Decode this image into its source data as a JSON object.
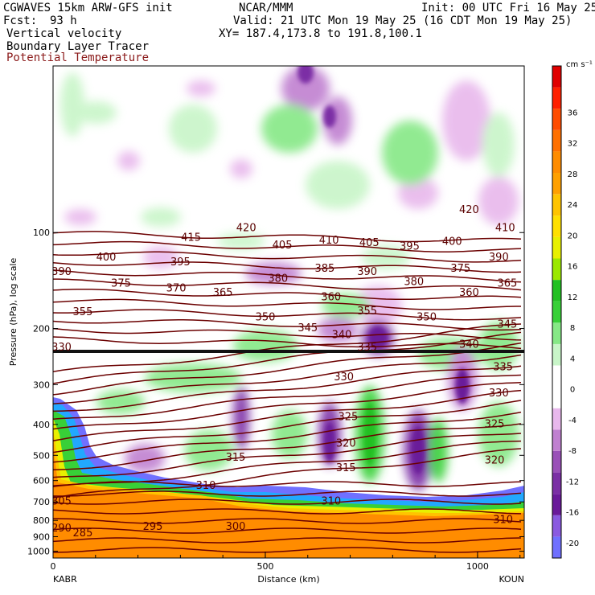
{
  "header": {
    "model": "CGWAVES 15km ARW-GFS init",
    "org": "NCAR/MMM",
    "init": "Init: 00 UTC Fri 16 May 25",
    "fcst_label": "Fcst:",
    "fcst_value": "93 h",
    "valid": "Valid: 21 UTC Mon 19 May 25 (16 CDT Mon 19 May 25)",
    "field1": "Vertical velocity",
    "field2": "Boundary Layer Tracer",
    "field3": "Potential Temperature",
    "xy": "XY= 187.4,173.8 to 191.8,100.1"
  },
  "colors": {
    "theta": "#6b0000",
    "bl_orange": "#ff8c00",
    "up_green": "#3cd83c",
    "down_purple": "#7a1fa0"
  },
  "chart_data": {
    "type": "cross-section",
    "xlabel": "Distance (km)",
    "ylabel": "Pressure (hPa), log scale",
    "x_ticks": [
      "0",
      "500",
      "1000"
    ],
    "x_tick_values": [
      0,
      500,
      1000
    ],
    "x_range": [
      0,
      1110
    ],
    "y_ticks": [
      "100",
      "200",
      "300",
      "400",
      "500",
      "600",
      "700",
      "800",
      "900",
      "1000"
    ],
    "y_tick_values": [
      100,
      200,
      300,
      400,
      500,
      600,
      700,
      800,
      900,
      1000
    ],
    "y_range": [
      1050,
      30
    ],
    "y_scale": "log",
    "left_station": "KABR",
    "right_station": "KOUN",
    "colorbar": {
      "units": "cm s⁻¹",
      "labels": [
        "36",
        "32",
        "28",
        "24",
        "20",
        "16",
        "12",
        "8",
        "4",
        "0",
        "-4",
        "-8",
        "-12",
        "-16",
        "-20"
      ],
      "label_values": [
        36,
        32,
        28,
        24,
        20,
        16,
        12,
        8,
        4,
        0,
        -4,
        -8,
        -12,
        -16,
        -20
      ],
      "range": [
        -22,
        42
      ],
      "colors": [
        "#7070ff",
        "#8a5ae0",
        "#6a1a9a",
        "#7b2fa5",
        "#9a50b8",
        "#c080d0",
        "#e8b8ec",
        "#ffffff",
        "#ffffff",
        "#c8f5c8",
        "#86e886",
        "#38d038",
        "#22c022",
        "#9be800",
        "#e8f000",
        "#ffe000",
        "#ffc400",
        "#ffa000",
        "#ff8c00",
        "#ff7000",
        "#ff4c00",
        "#ff2000",
        "#e00000"
      ]
    },
    "theta_contours": [
      {
        "label": "285",
        "x": 70,
        "p": 880
      },
      {
        "label": "290",
        "x": 20,
        "p": 850
      },
      {
        "label": "295",
        "x": 235,
        "p": 840
      },
      {
        "label": "300",
        "x": 430,
        "p": 840
      },
      {
        "label": "305",
        "x": 20,
        "p": 700
      },
      {
        "label": "310",
        "x": 360,
        "p": 625
      },
      {
        "label": "310",
        "x": 655,
        "p": 700
      },
      {
        "label": "310",
        "x": 1060,
        "p": 800
      },
      {
        "label": "315",
        "x": 430,
        "p": 510
      },
      {
        "label": "315",
        "x": 690,
        "p": 550
      },
      {
        "label": "320",
        "x": 690,
        "p": 460
      },
      {
        "label": "320",
        "x": 1040,
        "p": 520
      },
      {
        "label": "325",
        "x": 695,
        "p": 380
      },
      {
        "label": "325",
        "x": 1040,
        "p": 400
      },
      {
        "label": "330",
        "x": 685,
        "p": 285
      },
      {
        "label": "330",
        "x": 1050,
        "p": 320
      },
      {
        "label": "330",
        "x": 20,
        "p": 230
      },
      {
        "label": "335",
        "x": 740,
        "p": 230
      },
      {
        "label": "335",
        "x": 1060,
        "p": 265
      },
      {
        "label": "340",
        "x": 680,
        "p": 210
      },
      {
        "label": "340",
        "x": 980,
        "p": 225
      },
      {
        "label": "345",
        "x": 600,
        "p": 200
      },
      {
        "label": "345",
        "x": 1070,
        "p": 195
      },
      {
        "label": "350",
        "x": 500,
        "p": 185
      },
      {
        "label": "350",
        "x": 880,
        "p": 185
      },
      {
        "label": "355",
        "x": 70,
        "p": 178
      },
      {
        "label": "355",
        "x": 740,
        "p": 177
      },
      {
        "label": "360",
        "x": 655,
        "p": 160
      },
      {
        "label": "360",
        "x": 980,
        "p": 155
      },
      {
        "label": "365",
        "x": 400,
        "p": 155
      },
      {
        "label": "365",
        "x": 1070,
        "p": 145
      },
      {
        "label": "370",
        "x": 290,
        "p": 150
      },
      {
        "label": "375",
        "x": 160,
        "p": 145
      },
      {
        "label": "375",
        "x": 960,
        "p": 130
      },
      {
        "label": "380",
        "x": 530,
        "p": 140
      },
      {
        "label": "380",
        "x": 850,
        "p": 143
      },
      {
        "label": "385",
        "x": 640,
        "p": 130
      },
      {
        "label": "390",
        "x": 20,
        "p": 133
      },
      {
        "label": "390",
        "x": 740,
        "p": 133
      },
      {
        "label": "390",
        "x": 1050,
        "p": 120
      },
      {
        "label": "395",
        "x": 300,
        "p": 124
      },
      {
        "label": "395",
        "x": 840,
        "p": 111
      },
      {
        "label": "400",
        "x": 125,
        "p": 120
      },
      {
        "label": "400",
        "x": 940,
        "p": 107
      },
      {
        "label": "405",
        "x": 540,
        "p": 110
      },
      {
        "label": "405",
        "x": 745,
        "p": 108
      },
      {
        "label": "410",
        "x": 650,
        "p": 106
      },
      {
        "label": "410",
        "x": 1065,
        "p": 97
      },
      {
        "label": "415",
        "x": 325,
        "p": 104
      },
      {
        "label": "420",
        "x": 455,
        "p": 97
      },
      {
        "label": "420",
        "x": 980,
        "p": 85
      }
    ]
  }
}
